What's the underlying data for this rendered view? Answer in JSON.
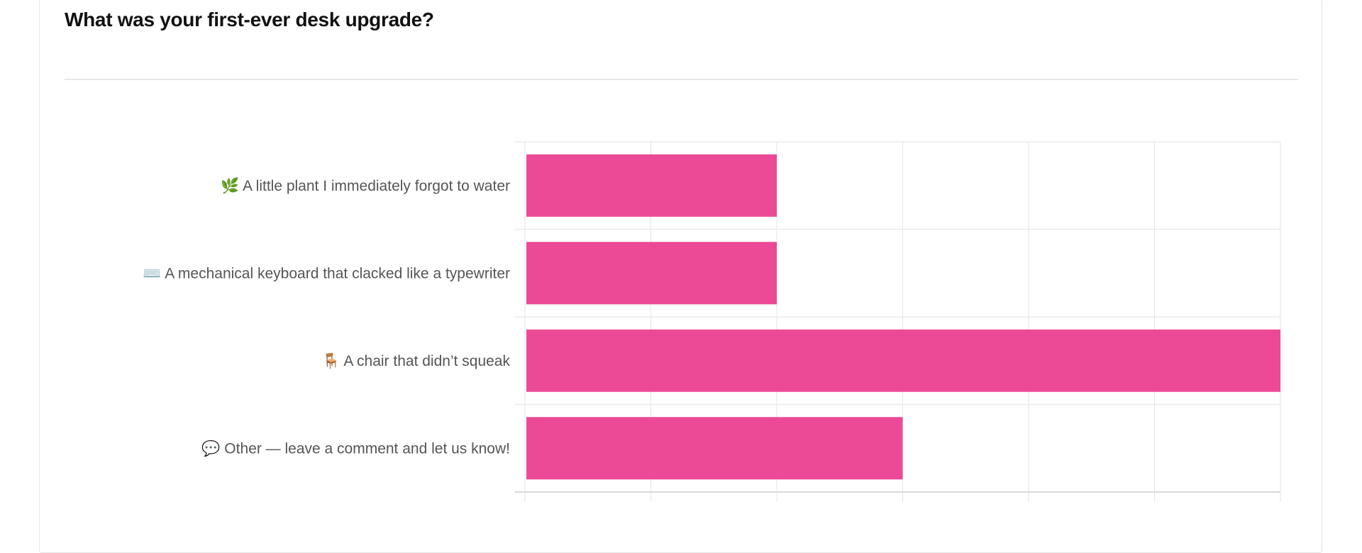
{
  "question": {
    "title": "What was your first-ever desk upgrade?"
  },
  "chart_data": {
    "type": "bar",
    "orientation": "horizontal",
    "categories": [
      "🌿 A little plant I immediately forgot to water",
      "⌨️ A mechanical keyboard that clacked like a typewriter",
      "🪑 A chair that didn’t squeak",
      "💬 Other — leave a comment and let us know!"
    ],
    "values": [
      2,
      2,
      6,
      3
    ],
    "xlim": [
      0,
      6
    ],
    "grid": true,
    "bar_color": "#EC4A96"
  }
}
